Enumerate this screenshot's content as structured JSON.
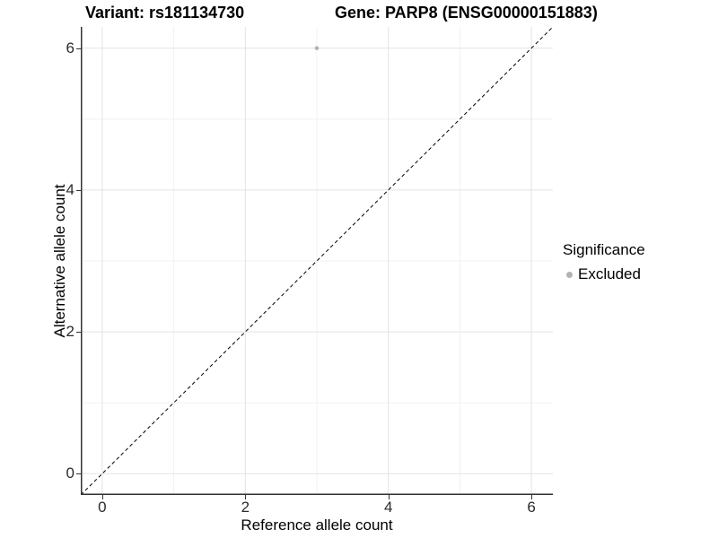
{
  "header": {
    "variant_title": "Variant: rs181134730",
    "gene_title": "Gene: PARP8 (ENSG00000151883)"
  },
  "legend": {
    "title": "Significance",
    "items": [
      {
        "label": "Excluded",
        "swatch_color": "#b3b3b3"
      }
    ]
  },
  "colors": {
    "grid_major": "#e3e3e3",
    "grid_minor": "#f1f1f1",
    "axis_line": "#333333",
    "tick_mark": "#333333",
    "tick_text": "#2b2b2b",
    "point": "#b3b3b3",
    "reference_line": "#000000"
  },
  "chart_data": {
    "type": "scatter",
    "title": "Variant: rs181134730 | Gene: PARP8 (ENSG00000151883)",
    "xlabel": "Reference allele count",
    "ylabel": "Alternative allele count",
    "xlim": [
      -0.3,
      6.3
    ],
    "ylim": [
      -0.3,
      6.3
    ],
    "x_ticks": [
      0,
      2,
      4,
      6
    ],
    "y_ticks": [
      0,
      2,
      4,
      6
    ],
    "x_minor_gridlines": [
      1,
      3,
      5
    ],
    "y_minor_gridlines": [
      1,
      3,
      5
    ],
    "grid": "on",
    "legend_position": "right",
    "reference_line": {
      "slope": 1,
      "intercept": 0,
      "style": "dashed",
      "color": "#000000"
    },
    "series": [
      {
        "name": "Excluded",
        "color": "#b3b3b3",
        "points": [
          {
            "x": 3,
            "y": 6
          }
        ]
      }
    ]
  }
}
